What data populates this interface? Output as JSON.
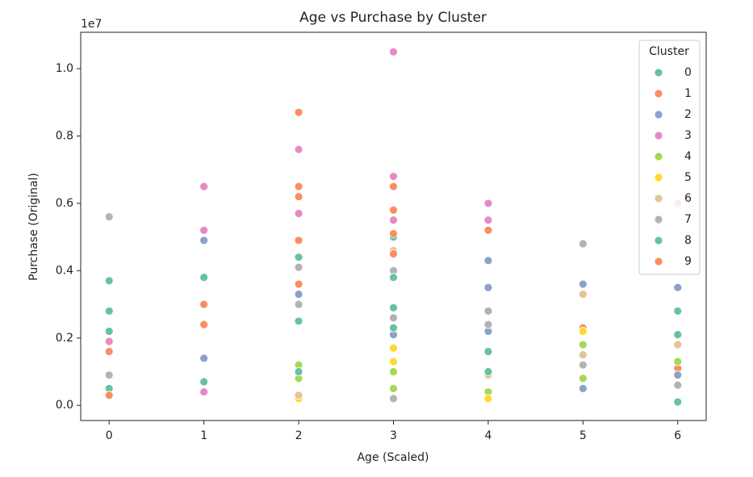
{
  "chart_data": {
    "type": "scatter",
    "title": "Age vs Purchase by Cluster",
    "x_label": "Age (Scaled)",
    "y_label": "Purchase (Original)",
    "y_offset_label": "1e7",
    "xlim": [
      -0.3,
      6.3
    ],
    "ylim": [
      -0.045,
      1.108
    ],
    "xticks": [
      0,
      1,
      2,
      3,
      4,
      5,
      6
    ],
    "yticks": [
      {
        "value": 0,
        "label": "0.0"
      },
      0.2,
      0.4,
      0.6,
      0.8,
      {
        "value": 1,
        "label": "1.0"
      }
    ],
    "legend_title": "Cluster",
    "legend_position": "upper right",
    "series": [
      {
        "name": "0",
        "color": "#66c2a5",
        "x": [
          0,
          0,
          0,
          1,
          1,
          2,
          3,
          3,
          4,
          6
        ],
        "values": [
          0.37,
          0.28,
          0.05,
          0.38,
          0.07,
          0.44,
          0.5,
          0.29,
          0.16,
          0.01
        ]
      },
      {
        "name": "1",
        "color": "#fc8d62",
        "x": [
          0,
          0,
          1,
          2,
          2,
          2,
          3,
          3,
          3,
          4,
          5,
          6
        ],
        "values": [
          0.16,
          0.03,
          0.24,
          0.87,
          0.65,
          0.36,
          0.65,
          0.58,
          0.1,
          0.52,
          0.23,
          0.11
        ]
      },
      {
        "name": "2",
        "color": "#8da0cb",
        "x": [
          1,
          1,
          2,
          3,
          4,
          4,
          4,
          5,
          5,
          5,
          6,
          6
        ],
        "values": [
          0.49,
          0.14,
          0.33,
          0.21,
          0.43,
          0.35,
          0.22,
          0.48,
          0.36,
          0.05,
          0.35,
          0.09
        ]
      },
      {
        "name": "3",
        "color": "#e78ac3",
        "x": [
          0,
          1,
          1,
          1,
          2,
          2,
          2,
          3,
          3,
          3,
          4,
          4
        ],
        "values": [
          0.19,
          0.65,
          0.52,
          0.04,
          0.76,
          0.57,
          0.02,
          1.05,
          0.68,
          0.55,
          0.6,
          0.55
        ]
      },
      {
        "name": "4",
        "color": "#a6d854",
        "x": [
          2,
          2,
          3,
          3,
          4,
          5,
          5,
          6
        ],
        "values": [
          0.12,
          0.08,
          0.1,
          0.05,
          0.04,
          0.18,
          0.08,
          0.13
        ]
      },
      {
        "name": "5",
        "color": "#ffd92f",
        "x": [
          2,
          3,
          3,
          4,
          5
        ],
        "values": [
          0.02,
          0.17,
          0.13,
          0.02,
          0.22
        ]
      },
      {
        "name": "6",
        "color": "#e5c494",
        "x": [
          2,
          2,
          3,
          4,
          5,
          5,
          6
        ],
        "values": [
          0.62,
          0.03,
          0.46,
          0.09,
          0.33,
          0.15,
          0.18
        ]
      },
      {
        "name": "7",
        "color": "#b3b3b3",
        "x": [
          0,
          0,
          2,
          2,
          3,
          3,
          3,
          4,
          4,
          5,
          5,
          6
        ],
        "values": [
          0.56,
          0.09,
          0.41,
          0.3,
          0.4,
          0.26,
          0.02,
          0.28,
          0.24,
          0.48,
          0.12,
          0.06
        ]
      },
      {
        "name": "8",
        "color": "#66c2a5",
        "x": [
          0,
          1,
          2,
          2,
          3,
          3,
          4,
          6,
          6
        ],
        "values": [
          0.22,
          0.3,
          0.25,
          0.1,
          0.38,
          0.23,
          0.1,
          0.28,
          0.21
        ]
      },
      {
        "name": "9",
        "color": "#fc8d62",
        "x": [
          1,
          2,
          2,
          3,
          3,
          6
        ],
        "values": [
          0.3,
          0.62,
          0.49,
          0.51,
          0.45,
          0.6
        ]
      }
    ]
  }
}
